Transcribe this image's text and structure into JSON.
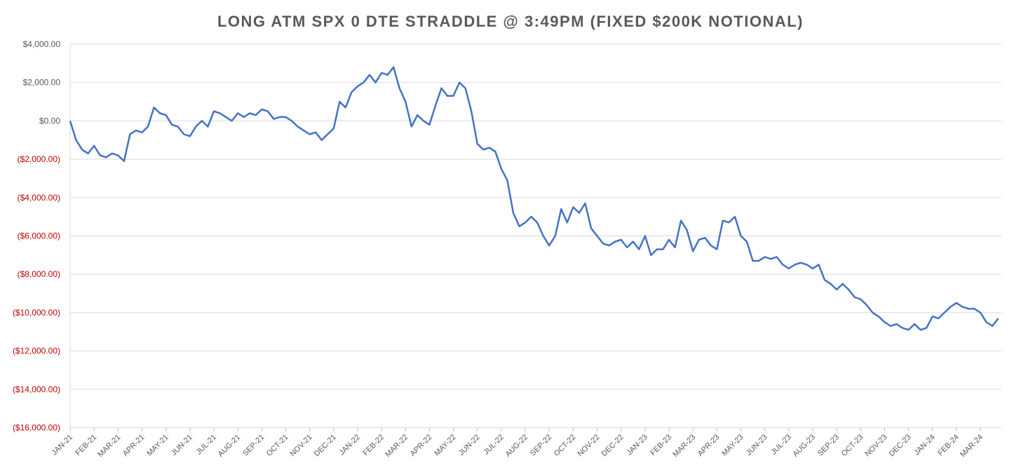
{
  "chart_data": {
    "type": "line",
    "title": "LONG ATM SPX 0 DTE STRADDLE @ 3:49PM (FIXED $200K NOTIONAL)",
    "categories": [
      "JAN-21",
      null,
      null,
      null,
      "FEB-21",
      null,
      null,
      null,
      "MAR-21",
      null,
      null,
      null,
      "APR-21",
      null,
      null,
      null,
      "MAY-21",
      null,
      null,
      null,
      "JUN-21",
      null,
      null,
      null,
      "JUL-21",
      null,
      null,
      null,
      "AUG-21",
      null,
      null,
      null,
      "SEP-21",
      null,
      null,
      null,
      "OCT-21",
      null,
      null,
      null,
      "NOV-21",
      null,
      null,
      null,
      "DEC-21",
      null,
      null,
      null,
      "JAN-22",
      null,
      null,
      null,
      "FEB-22",
      null,
      null,
      null,
      "MAR-22",
      null,
      null,
      null,
      "APR-22",
      null,
      null,
      null,
      "MAY-22",
      null,
      null,
      null,
      "JUN-22",
      null,
      null,
      null,
      "JUL-22",
      null,
      null,
      null,
      "AUG-22",
      null,
      null,
      null,
      "SEP-22",
      null,
      null,
      null,
      "OCT-22",
      null,
      null,
      null,
      "NOV-22",
      null,
      null,
      null,
      "DEC-22",
      null,
      null,
      null,
      "JAN-23",
      null,
      null,
      null,
      "FEB-23",
      null,
      null,
      null,
      "MAR-23",
      null,
      null,
      null,
      "APR-23",
      null,
      null,
      null,
      "MAY-23",
      null,
      null,
      null,
      "JUN-23",
      null,
      null,
      null,
      "JUL-23",
      null,
      null,
      null,
      "AUG-23",
      null,
      null,
      null,
      "SEP-23",
      null,
      null,
      null,
      "OCT-23",
      null,
      null,
      null,
      "NOV-23",
      null,
      null,
      null,
      "DEC-23",
      null,
      null,
      null,
      "JAN-24",
      null,
      null,
      null,
      "FEB-24",
      null,
      null,
      null,
      "MAR-24",
      null,
      null,
      null
    ],
    "series": [
      {
        "color": "#4472c4",
        "values": [
          0,
          -1000,
          -1500,
          -1700,
          -1300,
          -1800,
          -1900,
          -1700,
          -1800,
          -2100,
          -700,
          -500,
          -600,
          -300,
          700,
          400,
          300,
          -200,
          -300,
          -700,
          -800,
          -300,
          0,
          -300,
          500,
          400,
          200,
          0,
          400,
          200,
          400,
          300,
          600,
          500,
          100,
          200,
          200,
          0,
          -300,
          -500,
          -700,
          -600,
          -1000,
          -700,
          -400,
          1000,
          700,
          1500,
          1800,
          2000,
          2400,
          2000,
          2500,
          2400,
          2800,
          1700,
          1000,
          -300,
          300,
          0,
          -200,
          800,
          1700,
          1300,
          1300,
          2000,
          1700,
          500,
          -1200,
          -1500,
          -1400,
          -1600,
          -2500,
          -3100,
          -4800,
          -5500,
          -5300,
          -5000,
          -5300,
          -6000,
          -6500,
          -6000,
          -4600,
          -5300,
          -4500,
          -4800,
          -4300,
          -5600,
          -6000,
          -6400,
          -6500,
          -6300,
          -6200,
          -6600,
          -6300,
          -6700,
          -6000,
          -7000,
          -6700,
          -6700,
          -6200,
          -6600,
          -5200,
          -5700,
          -6800,
          -6200,
          -6100,
          -6500,
          -6700,
          -5200,
          -5300,
          -5000,
          -6000,
          -6300,
          -7300,
          -7300,
          -7100,
          -7200,
          -7100,
          -7500,
          -7700,
          -7500,
          -7400,
          -7500,
          -7700,
          -7500,
          -8300,
          -8500,
          -8800,
          -8500,
          -8800,
          -9200,
          -9300,
          -9600,
          -10000,
          -10200,
          -10500,
          -10700,
          -10600,
          -10800,
          -10900,
          -10600,
          -10900,
          -10800,
          -10200,
          -10300,
          -10000,
          -9700,
          -9500,
          -9700,
          -9800,
          -9800,
          -10000,
          -10500,
          -10700,
          -10300
        ]
      }
    ],
    "ylim": [
      -16000,
      4000
    ],
    "yticks": [
      {
        "value": -16000,
        "label": "($16,000.00)"
      },
      {
        "value": -14000,
        "label": "($14,000.00)"
      },
      {
        "value": -12000,
        "label": "($12,000.00)"
      },
      {
        "value": -10000,
        "label": "($10,000.00)"
      },
      {
        "value": -8000,
        "label": "($8,000.00)"
      },
      {
        "value": -6000,
        "label": "($6,000.00)"
      },
      {
        "value": -4000,
        "label": "($4,000.00)"
      },
      {
        "value": -2000,
        "label": "($2,000.00)"
      },
      {
        "value": 0,
        "label": "$0.00"
      },
      {
        "value": 2000,
        "label": "$2,000.00"
      },
      {
        "value": 4000,
        "label": "$4,000.00"
      }
    ],
    "grid": true,
    "negative_tick_color": "#c00000"
  }
}
